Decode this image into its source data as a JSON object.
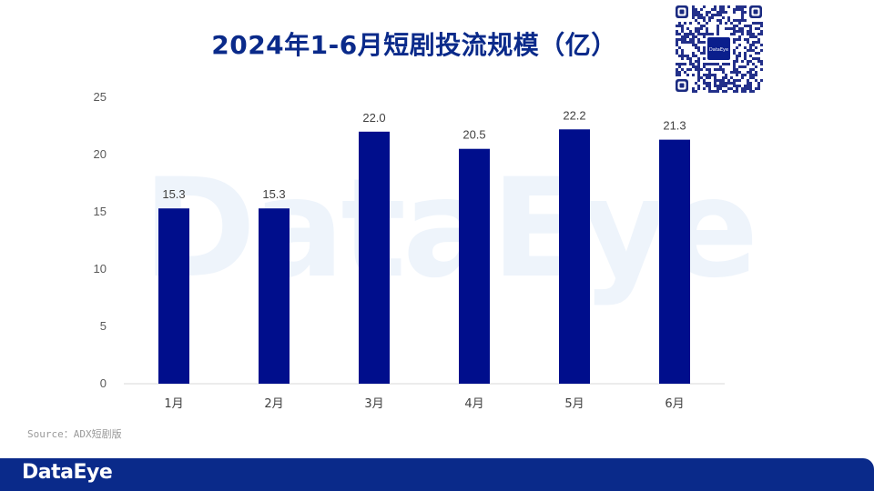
{
  "title": "2024年1-6月短剧投流规模（亿）",
  "source": "Source：ADX短剧版",
  "brand": "DataEye",
  "watermark": "DataEye",
  "colors": {
    "bar": "#000e8c",
    "title": "#0a2a8a",
    "footer": "#0a2a8a"
  },
  "chart_data": {
    "type": "bar",
    "title": "2024年1-6月短剧投流规模（亿）",
    "categories": [
      "1月",
      "2月",
      "3月",
      "4月",
      "5月",
      "6月"
    ],
    "values": [
      15.3,
      15.3,
      22.0,
      20.5,
      22.2,
      21.3
    ],
    "value_labels": [
      "15.3",
      "15.3",
      "22.0",
      "20.5",
      "22.2",
      "21.3"
    ],
    "ylim": [
      0,
      25
    ],
    "yticks": [
      0,
      5,
      10,
      15,
      20,
      25
    ],
    "grid": false,
    "legend": "none",
    "xlabel": "",
    "ylabel": ""
  }
}
